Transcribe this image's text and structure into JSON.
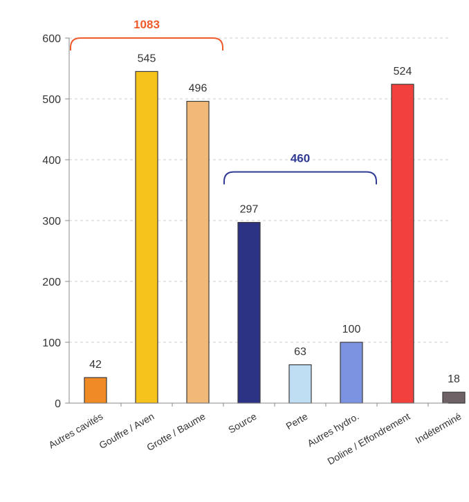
{
  "chart_data": {
    "type": "bar",
    "title": "",
    "xlabel": "",
    "ylabel": "",
    "ylim": [
      0,
      600
    ],
    "yticks": [
      0,
      100,
      200,
      300,
      400,
      500,
      600
    ],
    "grid": true,
    "categories": [
      "Autres cavités",
      "Gouffre / Aven",
      "Grotte / Baume",
      "Source",
      "Perte",
      "Autres hydro.",
      "Doline / Effondrement",
      "Indéterminé"
    ],
    "values": [
      42,
      545,
      496,
      297,
      63,
      100,
      524,
      18
    ],
    "bar_colors": [
      "#F08A24",
      "#F6C21C",
      "#F2B877",
      "#2C3384",
      "#BFDDF3",
      "#7B93E0",
      "#F2403C",
      "#6E6266"
    ],
    "groups": [
      {
        "label": "1083",
        "from": 0,
        "to": 2,
        "y": 600,
        "color": "#EE5A2A"
      },
      {
        "label": "460",
        "from": 3,
        "to": 5,
        "y": 380,
        "color": "#2F3A95"
      }
    ]
  }
}
